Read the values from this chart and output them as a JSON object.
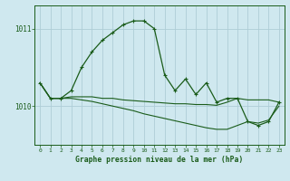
{
  "title": "Graphe pression niveau de la mer (hPa)",
  "background_color": "#cfe8ef",
  "grid_color": "#aecdd6",
  "line_color": "#1a5c1a",
  "x_ticks": [
    0,
    1,
    2,
    3,
    4,
    5,
    6,
    7,
    8,
    9,
    10,
    11,
    12,
    13,
    14,
    15,
    16,
    17,
    18,
    19,
    20,
    21,
    22,
    23
  ],
  "ylim": [
    1009.5,
    1011.3
  ],
  "yticks": [
    1010,
    1011
  ],
  "series1": [
    1010.3,
    1010.1,
    1010.1,
    1010.2,
    1010.5,
    1010.7,
    1010.85,
    1010.95,
    1011.05,
    1011.1,
    1011.1,
    1011.0,
    1010.4,
    1010.2,
    1010.35,
    1010.15,
    1010.3,
    1010.05,
    1010.1,
    1010.1,
    1009.8,
    1009.75,
    1009.8,
    1010.05
  ],
  "series2": [
    1010.3,
    1010.1,
    1010.1,
    1010.1,
    1010.08,
    1010.06,
    1010.03,
    1010.0,
    1009.97,
    1009.94,
    1009.9,
    1009.87,
    1009.84,
    1009.81,
    1009.78,
    1009.75,
    1009.72,
    1009.7,
    1009.7,
    1009.75,
    1009.8,
    1009.78,
    1009.82,
    1010.0
  ],
  "series3": [
    1010.3,
    1010.1,
    1010.1,
    1010.12,
    1010.12,
    1010.12,
    1010.1,
    1010.1,
    1010.08,
    1010.07,
    1010.06,
    1010.05,
    1010.04,
    1010.03,
    1010.03,
    1010.02,
    1010.02,
    1010.01,
    1010.05,
    1010.1,
    1010.08,
    1010.08,
    1010.08,
    1010.05
  ]
}
